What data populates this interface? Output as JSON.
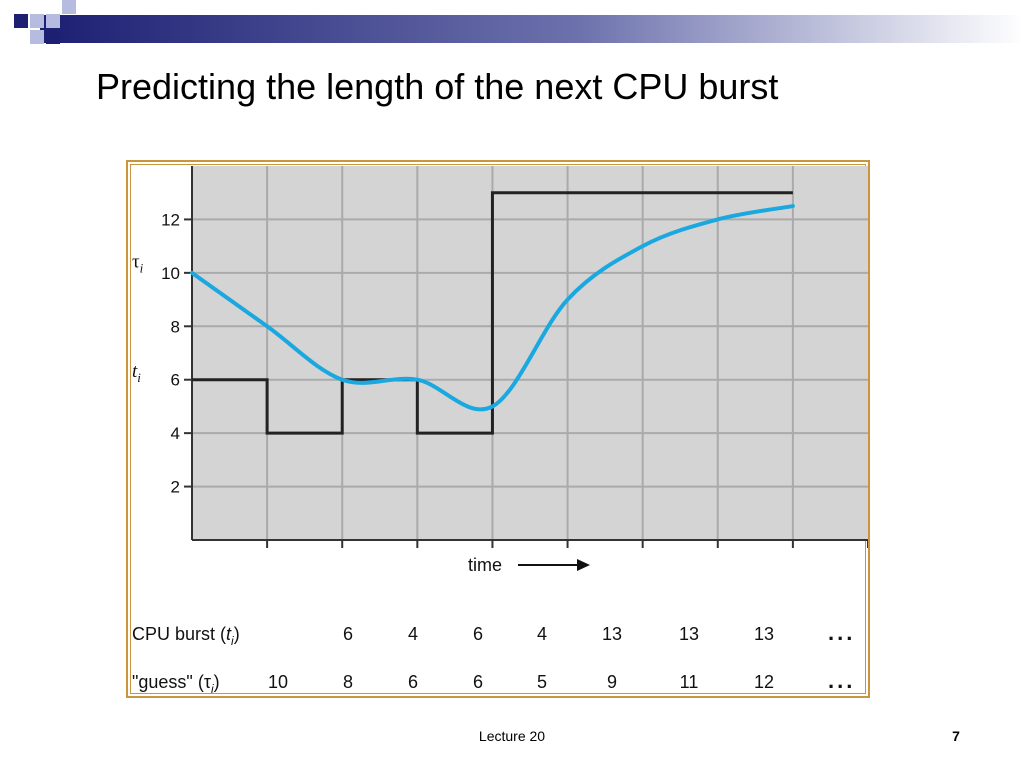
{
  "slide": {
    "title": "Predicting the length of the next CPU burst",
    "footer_text": "Lecture 20",
    "page_number": "7"
  },
  "colors": {
    "actual_line": "#222222",
    "guess_curve": "#1aa8e0",
    "plot_background": "#d4d4d4",
    "grid": "#aaaaaa",
    "frame": "#c9963e",
    "deco_dark": "#1c1f72",
    "deco_light": "#b6bbe0"
  },
  "chart_data": {
    "type": "line",
    "x_axis_label": "time",
    "y_axis_labels": [
      "τi",
      "ti"
    ],
    "y_ticks": [
      2,
      4,
      6,
      8,
      10,
      12
    ],
    "ylim": [
      0,
      14
    ],
    "xlim": [
      0,
      9
    ],
    "grid": true,
    "series": [
      {
        "key": "t",
        "step": true,
        "values": [
          6,
          4,
          6,
          4,
          13,
          13,
          13,
          13
        ]
      },
      {
        "key": "tau",
        "smooth": true,
        "values": [
          10,
          8,
          6,
          6,
          5,
          9,
          11,
          12,
          12.5
        ]
      }
    ],
    "table": {
      "rows": [
        {
          "label": "CPU burst (ti)",
          "values": [
            "",
            "6",
            "4",
            "6",
            "4",
            "13",
            "13",
            "13"
          ],
          "ellipsis": "..."
        },
        {
          "label": "\"guess\" (τi)",
          "values": [
            "10",
            "8",
            "6",
            "6",
            "5",
            "9",
            "11",
            "12"
          ],
          "ellipsis": "..."
        }
      ]
    }
  }
}
